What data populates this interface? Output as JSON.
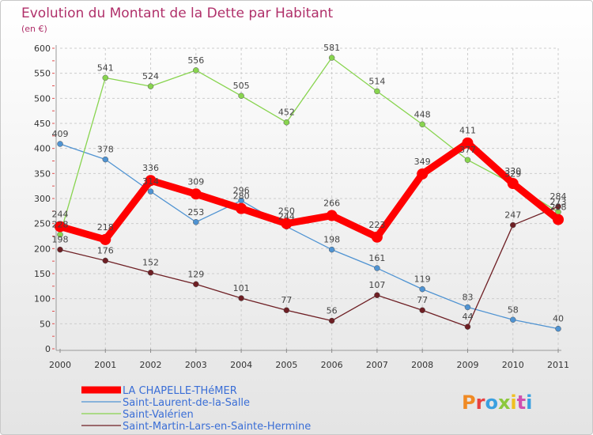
{
  "chart_data": {
    "type": "line",
    "title": "Evolution du Montant de la Dette par Habitant",
    "subtitle": "(en €)",
    "x": [
      "2000",
      "2001",
      "2002",
      "2003",
      "2004",
      "2005",
      "2006",
      "2007",
      "2008",
      "2009",
      "2010",
      "2011"
    ],
    "y_ticks": [
      0,
      50,
      100,
      150,
      200,
      250,
      300,
      350,
      400,
      450,
      500,
      550,
      600
    ],
    "ylim": [
      0,
      600
    ],
    "grid": true,
    "legend_position": "bottom-left",
    "series": [
      {
        "name": "LA CHAPELLE-THéMER",
        "color": "#ff0000",
        "values": [
          244,
          218,
          336,
          309,
          280,
          250,
          266,
          223,
          349,
          411,
          330,
          258
        ]
      },
      {
        "name": "Saint-Laurent-de-la-Salle",
        "color": "#4f93d2",
        "values": [
          409,
          378,
          314,
          253,
          296,
          244,
          198,
          161,
          119,
          83,
          58,
          40
        ]
      },
      {
        "name": "Saint-Valérien",
        "color": "#88d44f",
        "values": [
          228,
          541,
          524,
          556,
          505,
          452,
          581,
          514,
          448,
          377,
          329,
          273
        ]
      },
      {
        "name": "Saint-Martin-Lars-en-Sainte-Hermine",
        "color": "#6e1f24",
        "values": [
          198,
          176,
          152,
          129,
          101,
          77,
          56,
          107,
          77,
          44,
          247,
          284
        ]
      }
    ]
  },
  "logo": {
    "text": "Proxiti",
    "colors": [
      "#f08a24",
      "#e84040",
      "#3aa0e0",
      "#8cc83c",
      "#f0c020",
      "#d050b0",
      "#3aa0e0"
    ]
  }
}
